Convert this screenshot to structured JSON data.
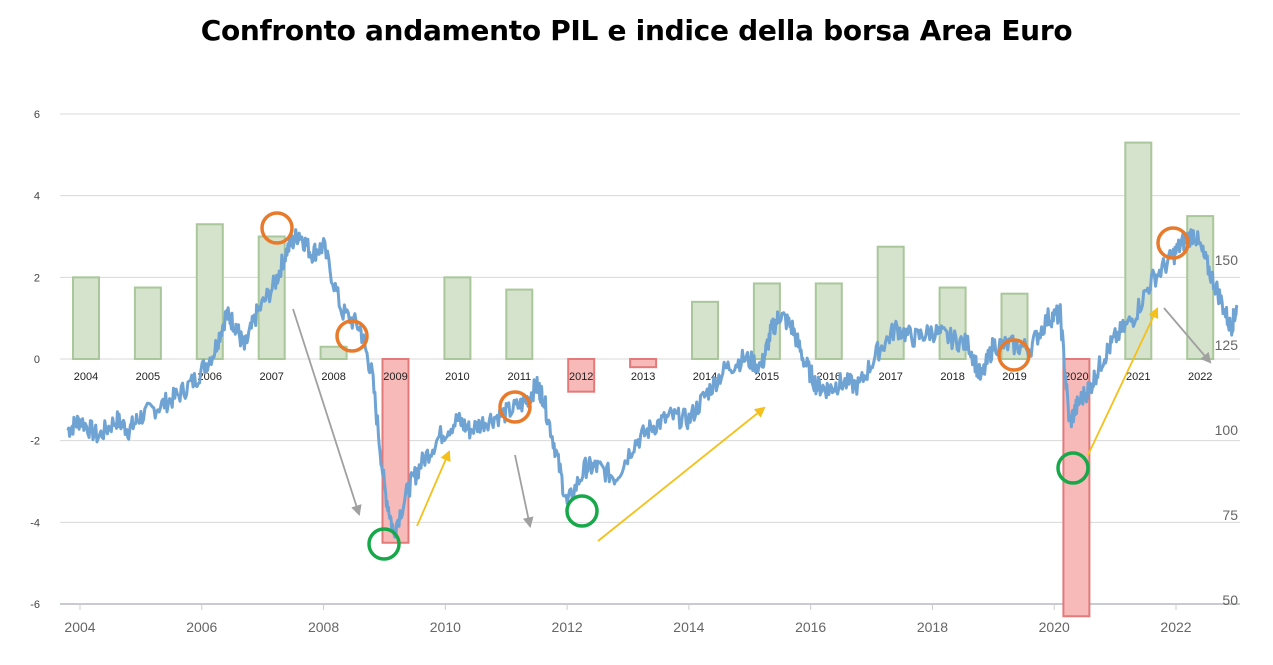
{
  "title": "Confronto andamento PIL e indice della borsa Area Euro",
  "colors": {
    "bar_positive_fill": "#d5e2cc",
    "bar_positive_stroke": "#a9c79a",
    "bar_negative_fill": "#f8b9b9",
    "bar_negative_stroke": "#e27a7a",
    "line": "#6fa3d4",
    "circle_peak": "#e87a2c",
    "circle_trough": "#17a84a",
    "arrow_down": "#a0a0a0",
    "arrow_up": "#f5c01a",
    "grid": "#d8d8d8"
  },
  "chart_data": [
    {
      "type": "bar",
      "title": "",
      "xlabel": "",
      "ylabel": "",
      "ylim": [
        -6,
        6
      ],
      "yticks": [
        "6",
        "4",
        "2",
        "0",
        "-2",
        "-4",
        "-6"
      ],
      "categories": [
        "2004",
        "2005",
        "2006",
        "2007",
        "2008",
        "2009",
        "2010",
        "2011",
        "2012",
        "2013",
        "2014",
        "2015",
        "2016",
        "2017",
        "2018",
        "2019",
        "2020",
        "2021",
        "2022"
      ],
      "values": [
        2.0,
        1.75,
        3.3,
        3.0,
        0.3,
        -4.5,
        2.0,
        1.7,
        -0.8,
        -0.2,
        1.4,
        1.85,
        1.85,
        2.75,
        1.75,
        1.6,
        -6.3,
        5.3,
        3.5
      ]
    },
    {
      "type": "line",
      "title": "",
      "xlabel": "",
      "ylabel": "",
      "xlim": [
        2003.8,
        2023.0
      ],
      "ylim": [
        43,
        177
      ],
      "xticks": [
        "2004",
        "2006",
        "2008",
        "2010",
        "2012",
        "2014",
        "2016",
        "2018",
        "2020",
        "2022"
      ],
      "yticks_right": [
        "150",
        "125",
        "100",
        "75",
        "50"
      ],
      "x": [
        2003.8,
        2004.0,
        2004.3,
        2004.6,
        2004.8,
        2005.0,
        2005.3,
        2005.6,
        2005.9,
        2006.2,
        2006.4,
        2006.55,
        2006.7,
        2006.9,
        2007.2,
        2007.4,
        2007.6,
        2007.8,
        2008.0,
        2008.3,
        2008.6,
        2008.8,
        2009.0,
        2009.15,
        2009.4,
        2009.6,
        2009.9,
        2010.2,
        2010.4,
        2010.7,
        2011.0,
        2011.3,
        2011.5,
        2011.6,
        2011.8,
        2012.0,
        2012.3,
        2012.5,
        2012.8,
        2013.1,
        2013.4,
        2013.7,
        2014.0,
        2014.3,
        2014.6,
        2014.9,
        2015.2,
        2015.35,
        2015.5,
        2015.7,
        2015.9,
        2016.1,
        2016.3,
        2016.5,
        2016.8,
        2017.1,
        2017.4,
        2017.7,
        2018.0,
        2018.3,
        2018.6,
        2018.8,
        2019.0,
        2019.3,
        2019.6,
        2019.9,
        2020.1,
        2020.25,
        2020.4,
        2020.6,
        2020.8,
        2021.0,
        2021.3,
        2021.6,
        2021.9,
        2022.1,
        2022.3,
        2022.5,
        2022.7,
        2022.9,
        2023.0
      ],
      "y": [
        100,
        103,
        98,
        103,
        100,
        104,
        107,
        110,
        115,
        123,
        134,
        131,
        124,
        134,
        143,
        153,
        158,
        152,
        154,
        135,
        130,
        116,
        83,
        70,
        83,
        90,
        98,
        103,
        100,
        103,
        105,
        108,
        113,
        110,
        95,
        78,
        89,
        89,
        86,
        96,
        101,
        104,
        103,
        111,
        118,
        121,
        119,
        129,
        134,
        130,
        120,
        113,
        112,
        114,
        113,
        123,
        130,
        127,
        129,
        127,
        125,
        115,
        125,
        125,
        124,
        133,
        134,
        102,
        108,
        113,
        121,
        127,
        133,
        144,
        150,
        155,
        158,
        149,
        140,
        130,
        136
      ]
    }
  ],
  "annotations": {
    "circles_peak": [
      "2007 peak",
      "2008 peak",
      "2011 peak",
      "2019 peak",
      "2022 peak"
    ],
    "circles_trough": [
      "2009 trough",
      "2012 trough",
      "2020 trough"
    ],
    "arrows_down": [
      "2007-2009 decline",
      "2011 decline",
      "2022 decline"
    ],
    "arrows_up": [
      "2009-2010 rebound",
      "2012-2015 rebound",
      "2020-2021 rebound"
    ]
  }
}
